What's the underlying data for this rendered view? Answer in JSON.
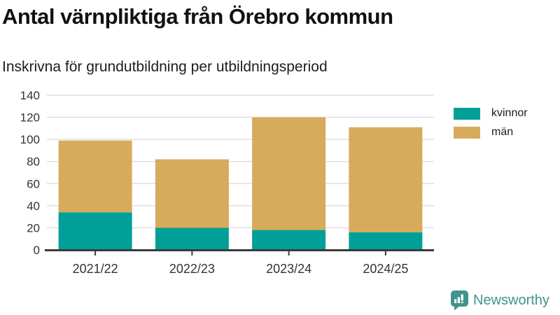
{
  "header": {
    "title": "Antal värnpliktiga från Örebro kommun",
    "subtitle": "Inskrivna för grundutbildning per utbildningsperiod"
  },
  "chart_data": {
    "type": "bar",
    "stacked": true,
    "title": "Antal värnpliktiga från Örebro kommun",
    "subtitle": "Inskrivna för grundutbildning per utbildningsperiod",
    "categories": [
      "2021/22",
      "2022/23",
      "2023/24",
      "2024/25"
    ],
    "series": [
      {
        "name": "kvinnor",
        "color": "#00A098",
        "values": [
          34,
          20,
          18,
          16
        ]
      },
      {
        "name": "män",
        "color": "#D7AB5C",
        "values": [
          65,
          62,
          102,
          95
        ]
      }
    ],
    "totals": [
      99,
      82,
      120,
      111
    ],
    "xlabel": "",
    "ylabel": "",
    "ylim": [
      0,
      140
    ],
    "yticks": [
      0,
      20,
      40,
      60,
      80,
      100,
      120,
      140
    ],
    "grid": true,
    "legend_position": "right"
  },
  "legend": {
    "items": [
      {
        "label": "kvinnor",
        "color": "#00A098"
      },
      {
        "label": "män",
        "color": "#D7AB5C"
      }
    ]
  },
  "footer": {
    "brand": "Newsworthy",
    "brand_color": "#3F948C"
  },
  "style": {
    "gridline_color": "#E0E0E0",
    "axis_color": "#3a3a3a",
    "tick_label_color": "#333333"
  }
}
